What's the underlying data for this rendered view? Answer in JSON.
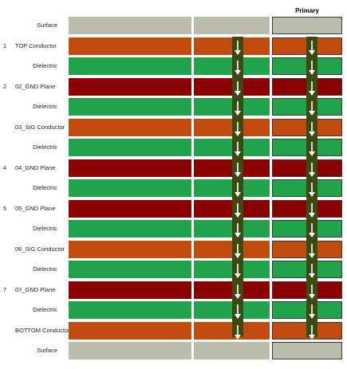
{
  "header": {
    "column_label": "Primary"
  },
  "colors": {
    "surface": "#bcbcad",
    "conductor": "#c24b0f",
    "dielectric": "#20a34a",
    "plane": "#8b0000",
    "via": "#3b4a10",
    "arrow": "#ffffff"
  },
  "layers": [
    {
      "num": "",
      "name": "Surface",
      "type": "surface"
    },
    {
      "num": "1",
      "name": "TOP Conductor",
      "type": "conductor"
    },
    {
      "num": "",
      "name": "Dielectric",
      "type": "dielectric"
    },
    {
      "num": "2",
      "name": "02_GND Plane",
      "type": "plane"
    },
    {
      "num": "",
      "name": "Dielectric",
      "type": "dielectric"
    },
    {
      "num": "",
      "name": "03_SIG Conductor",
      "type": "conductor"
    },
    {
      "num": "",
      "name": "Dielectric",
      "type": "dielectric"
    },
    {
      "num": "4",
      "name": "04_GND Plane",
      "type": "plane"
    },
    {
      "num": "",
      "name": "Dielectric",
      "type": "dielectric"
    },
    {
      "num": "5",
      "name": "05_GND Plane",
      "type": "plane"
    },
    {
      "num": "",
      "name": "Dielectric",
      "type": "dielectric"
    },
    {
      "num": "",
      "name": "06_SIG Conductor",
      "type": "conductor"
    },
    {
      "num": "",
      "name": "Dielectric",
      "type": "dielectric"
    },
    {
      "num": "7",
      "name": "07_GND Plane",
      "type": "plane"
    },
    {
      "num": "",
      "name": "Dielectric",
      "type": "dielectric"
    },
    {
      "num": "",
      "name": "BOTTOM Conductor",
      "type": "conductor"
    },
    {
      "num": "",
      "name": "Surface",
      "type": "surface"
    }
  ]
}
